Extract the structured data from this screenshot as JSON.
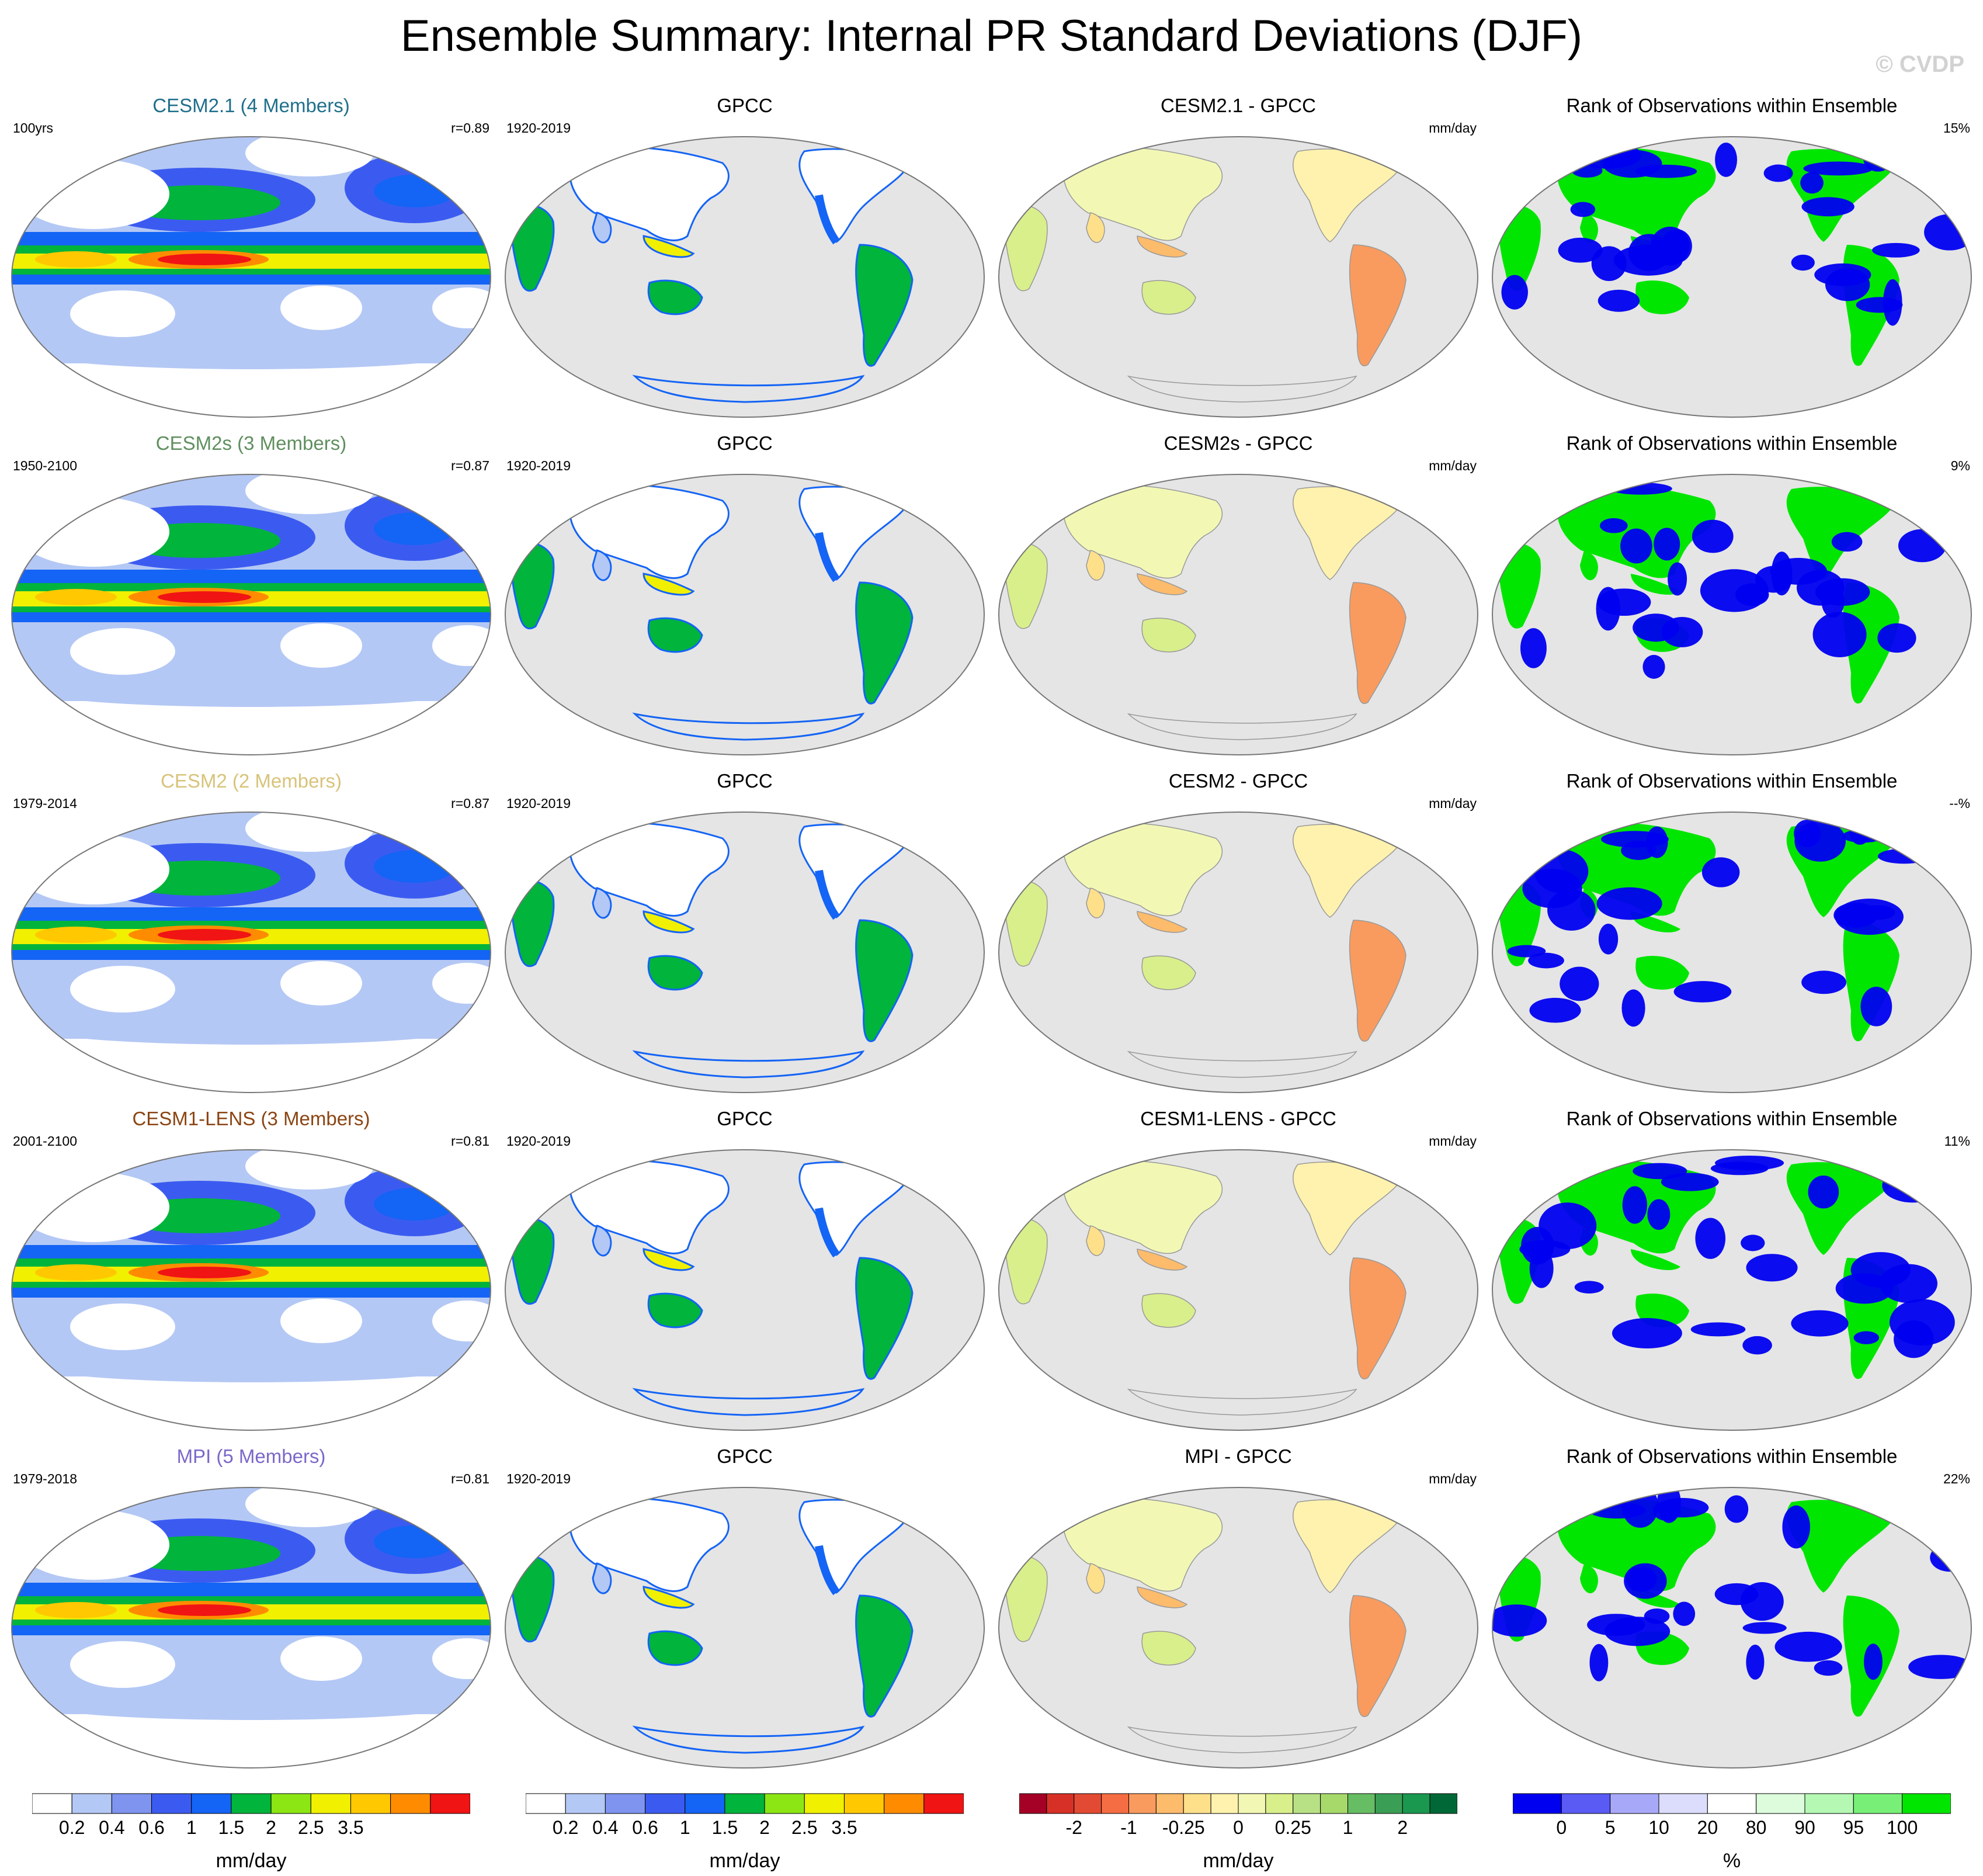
{
  "title": "Ensemble Summary: Internal PR Standard Deviations (DJF)",
  "copyright": "© CVDP",
  "colors": {
    "model_titles": [
      "#1f6f8b",
      "#5f8f5f",
      "#d8c37a",
      "#8b4513",
      "#7b68c8"
    ],
    "map_background": "#e5e5e5",
    "coast": "#777777"
  },
  "rows": [
    {
      "model": {
        "title": "CESM2.1 (4 Members)",
        "left": "100yrs",
        "right": "r=0.89"
      },
      "obs": {
        "title": "GPCC",
        "left": "1920-2019"
      },
      "diff": {
        "title": "CESM2.1 - GPCC",
        "right": "mm/day"
      },
      "rank": {
        "title": "Rank of Observations within Ensemble",
        "right": "15%"
      }
    },
    {
      "model": {
        "title": "CESM2s (3 Members)",
        "left": "1950-2100",
        "right": "r=0.87"
      },
      "obs": {
        "title": "GPCC",
        "left": "1920-2019"
      },
      "diff": {
        "title": "CESM2s - GPCC",
        "right": "mm/day"
      },
      "rank": {
        "title": "Rank of Observations within Ensemble",
        "right": "9%"
      }
    },
    {
      "model": {
        "title": "CESM2 (2 Members)",
        "left": "1979-2014",
        "right": "r=0.87"
      },
      "obs": {
        "title": "GPCC",
        "left": "1920-2019"
      },
      "diff": {
        "title": "CESM2 - GPCC",
        "right": "mm/day"
      },
      "rank": {
        "title": "Rank of Observations within Ensemble",
        "right": "--%"
      }
    },
    {
      "model": {
        "title": "CESM1-LENS (3 Members)",
        "left": "2001-2100",
        "right": "r=0.81"
      },
      "obs": {
        "title": "GPCC",
        "left": "1920-2019"
      },
      "diff": {
        "title": "CESM1-LENS - GPCC",
        "right": "mm/day"
      },
      "rank": {
        "title": "Rank of Observations within Ensemble",
        "right": "11%"
      }
    },
    {
      "model": {
        "title": "MPI (5 Members)",
        "left": "1979-2018",
        "right": "r=0.81"
      },
      "obs": {
        "title": "GPCC",
        "left": "1920-2019"
      },
      "diff": {
        "title": "MPI - GPCC",
        "right": "mm/day"
      },
      "rank": {
        "title": "Rank of Observations within Ensemble",
        "right": "22%"
      }
    }
  ],
  "colorbars": [
    {
      "units": "mm/day",
      "colors": [
        "#ffffff",
        "#b4c8f5",
        "#7e94ee",
        "#3b5bf0",
        "#1464f5",
        "#00b43c",
        "#8ce614",
        "#f0f000",
        "#ffc800",
        "#ff8c00",
        "#f01414"
      ],
      "labels": [
        "0.2",
        "0.4",
        "0.6",
        "1",
        "1.5",
        "2",
        "2.5",
        "3.5"
      ],
      "label_boundaries": [
        1,
        2,
        3,
        4,
        5,
        6,
        7,
        8
      ]
    },
    {
      "units": "mm/day",
      "colors": [
        "#ffffff",
        "#b4c8f5",
        "#7e94ee",
        "#3b5bf0",
        "#1464f5",
        "#00b43c",
        "#8ce614",
        "#f0f000",
        "#ffc800",
        "#ff8c00",
        "#f01414"
      ],
      "labels": [
        "0.2",
        "0.4",
        "0.6",
        "1",
        "1.5",
        "2",
        "2.5",
        "3.5"
      ],
      "label_boundaries": [
        1,
        2,
        3,
        4,
        5,
        6,
        7,
        8
      ]
    },
    {
      "units": "mm/day",
      "colors": [
        "#a50026",
        "#d73027",
        "#e34a33",
        "#f46d43",
        "#f99b5e",
        "#fdbb6c",
        "#fee08b",
        "#fff2ae",
        "#f2f8b4",
        "#d9ef8b",
        "#b8e186",
        "#a6d96a",
        "#66bd63",
        "#3a9f55",
        "#1a9850",
        "#006837"
      ],
      "labels": [
        "-2",
        "-1",
        "-0.25",
        "0",
        "0.25",
        "1",
        "2"
      ],
      "label_boundaries": [
        2,
        4,
        6,
        8,
        10,
        12,
        14
      ]
    },
    {
      "units": "%",
      "colors": [
        "#0000f0",
        "#5a5af5",
        "#a8a8f8",
        "#dcdcfc",
        "#ffffff",
        "#dcfcdc",
        "#b4f8b4",
        "#78f078",
        "#00e600"
      ],
      "labels": [
        "0",
        "5",
        "10",
        "20",
        "80",
        "90",
        "95",
        "100"
      ],
      "label_boundaries": [
        1,
        2,
        3,
        4,
        5,
        6,
        7,
        8
      ]
    }
  ]
}
